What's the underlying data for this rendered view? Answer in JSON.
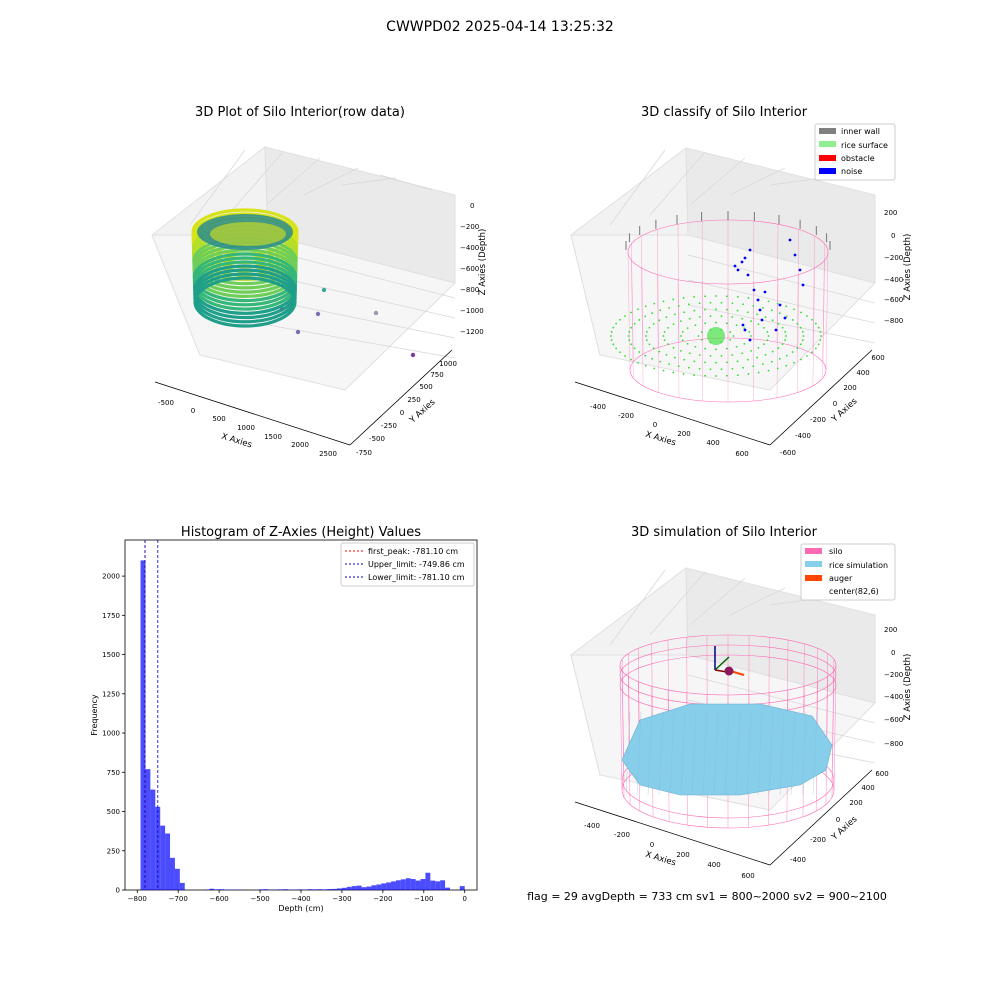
{
  "suptitle": "CWWPD02 2025-04-14 13:25:32",
  "colors": {
    "hist": "#0000ff",
    "first_peak": "#ff0000",
    "limits": "#0000cc",
    "inner_wall": "#808080",
    "rice_surface": "#90ee90",
    "obstacle": "#ff0000",
    "noise": "#0000ff",
    "silo": "#ff69b4",
    "rice_sim": "#87ceeb",
    "auger": "#ff4500"
  },
  "chart_data": [
    {
      "type": "scatter",
      "title": "3D Plot of Silo Interior(row data)",
      "xlabel": "X Axies",
      "ylabel": "Y Axies",
      "zlabel": "Z Axies (Depth)",
      "xticks": [
        "-500",
        "0",
        "500",
        "1000",
        "1500",
        "2000",
        "2500"
      ],
      "yticks": [
        "-750",
        "-500",
        "-250",
        "0",
        "250",
        "500",
        "750",
        "1000"
      ],
      "zticks": [
        "0",
        "−200",
        "−400",
        "−600",
        "−800",
        "−1000",
        "−1200"
      ],
      "xlim": [
        -750,
        2600
      ],
      "ylim": [
        -800,
        1150
      ],
      "zlim": [
        -1300,
        50
      ],
      "grid": true
    },
    {
      "type": "scatter",
      "title": "3D classify of Silo Interior",
      "xlabel": "X Axies",
      "ylabel": "Y Axies",
      "zlabel": "Z Axies (Depth)",
      "xticks": [
        "-400",
        "-200",
        "0",
        "200",
        "400",
        "600"
      ],
      "yticks": [
        "-600",
        "-400",
        "-200",
        "0",
        "200",
        "400",
        "600"
      ],
      "zticks": [
        "200",
        "0",
        "−200",
        "−400",
        "−600",
        "−800"
      ],
      "legend": [
        {
          "label": "inner wall",
          "color": "#808080"
        },
        {
          "label": "rice surface",
          "color": "#90ee90"
        },
        {
          "label": "obstacle",
          "color": "#ff0000"
        },
        {
          "label": "noise",
          "color": "#0000ff"
        }
      ],
      "legend_loc": "upper right",
      "grid": true
    },
    {
      "type": "bar",
      "title": "Histogram of Z-Axies (Height) Values",
      "xlabel": "Depth (cm)",
      "ylabel": "Frequency",
      "xticks": [
        "−800",
        "−700",
        "−600",
        "−500",
        "−400",
        "−300",
        "−200",
        "−100",
        "0"
      ],
      "xtick_values": [
        -800,
        -700,
        -600,
        -500,
        -400,
        -300,
        -200,
        -100,
        0
      ],
      "yticks": [
        "0",
        "250",
        "500",
        "750",
        "1000",
        "1250",
        "1500",
        "1750",
        "2000"
      ],
      "ytick_values": [
        0,
        250,
        500,
        750,
        1000,
        1250,
        1500,
        1750,
        2000
      ],
      "xlim": [
        -830,
        30
      ],
      "ylim": [
        0,
        2230
      ],
      "bin_width": 12,
      "x": [
        -786,
        -774,
        -762,
        -750,
        -738,
        -726,
        -714,
        -702,
        -690,
        -678,
        -666,
        -654,
        -642,
        -630,
        -618,
        -606,
        -594,
        -582,
        -570,
        -558,
        -546,
        -534,
        -522,
        -510,
        -498,
        -486,
        -474,
        -462,
        -450,
        -438,
        -426,
        -414,
        -402,
        -390,
        -378,
        -366,
        -354,
        -342,
        -330,
        -318,
        -306,
        -294,
        -282,
        -270,
        -258,
        -246,
        -234,
        -222,
        -210,
        -198,
        -186,
        -174,
        -162,
        -150,
        -138,
        -126,
        -114,
        -102,
        -90,
        -78,
        -66,
        -54,
        -42,
        -30,
        -18,
        -6
      ],
      "values": [
        2100,
        770,
        640,
        530,
        410,
        360,
        205,
        135,
        45,
        0,
        0,
        0,
        0,
        3,
        8,
        4,
        5,
        3,
        2,
        2,
        2,
        0,
        0,
        0,
        4,
        5,
        2,
        2,
        4,
        5,
        3,
        2,
        4,
        2,
        5,
        4,
        5,
        4,
        6,
        7,
        10,
        14,
        20,
        25,
        28,
        18,
        22,
        30,
        35,
        42,
        48,
        55,
        62,
        68,
        75,
        70,
        60,
        70,
        110,
        60,
        55,
        62,
        15,
        0,
        0,
        25
      ],
      "vlines": [
        {
          "label": "first_peak: -781.10 cm",
          "x": -781.1,
          "color": "#ff0000"
        },
        {
          "label": "Upper_limit: -749.86 cm",
          "x": -749.86,
          "color": "#0000cc"
        },
        {
          "label": "Lower_limit: -781.10 cm",
          "x": -781.1,
          "color": "#0000cc"
        }
      ],
      "legend_loc": "upper right",
      "grid": false
    },
    {
      "type": "scatter",
      "title": "3D simulation of Silo Interior",
      "xlabel": "X Axies",
      "ylabel": "Y Axies",
      "zlabel": "Z Axies (Depth)",
      "xticks": [
        "-400",
        "-200",
        "0",
        "200",
        "400",
        "600"
      ],
      "yticks": [
        "-400",
        "-200",
        "0",
        "200",
        "400",
        "600"
      ],
      "zticks": [
        "200",
        "0",
        "−200",
        "−400",
        "−600",
        "−800"
      ],
      "legend": [
        {
          "label": "silo",
          "color": "#ff69b4"
        },
        {
          "label": "rice simulation",
          "color": "#87ceeb"
        },
        {
          "label": "auger",
          "color": "#ff4500"
        },
        {
          "label": "center(82,6)",
          "color": ""
        }
      ],
      "legend_loc": "upper right",
      "grid": true
    }
  ],
  "footer": "flag = 29  avgDepth = 733 cm  sv1 = 800~2000  sv2 = 900~2100"
}
